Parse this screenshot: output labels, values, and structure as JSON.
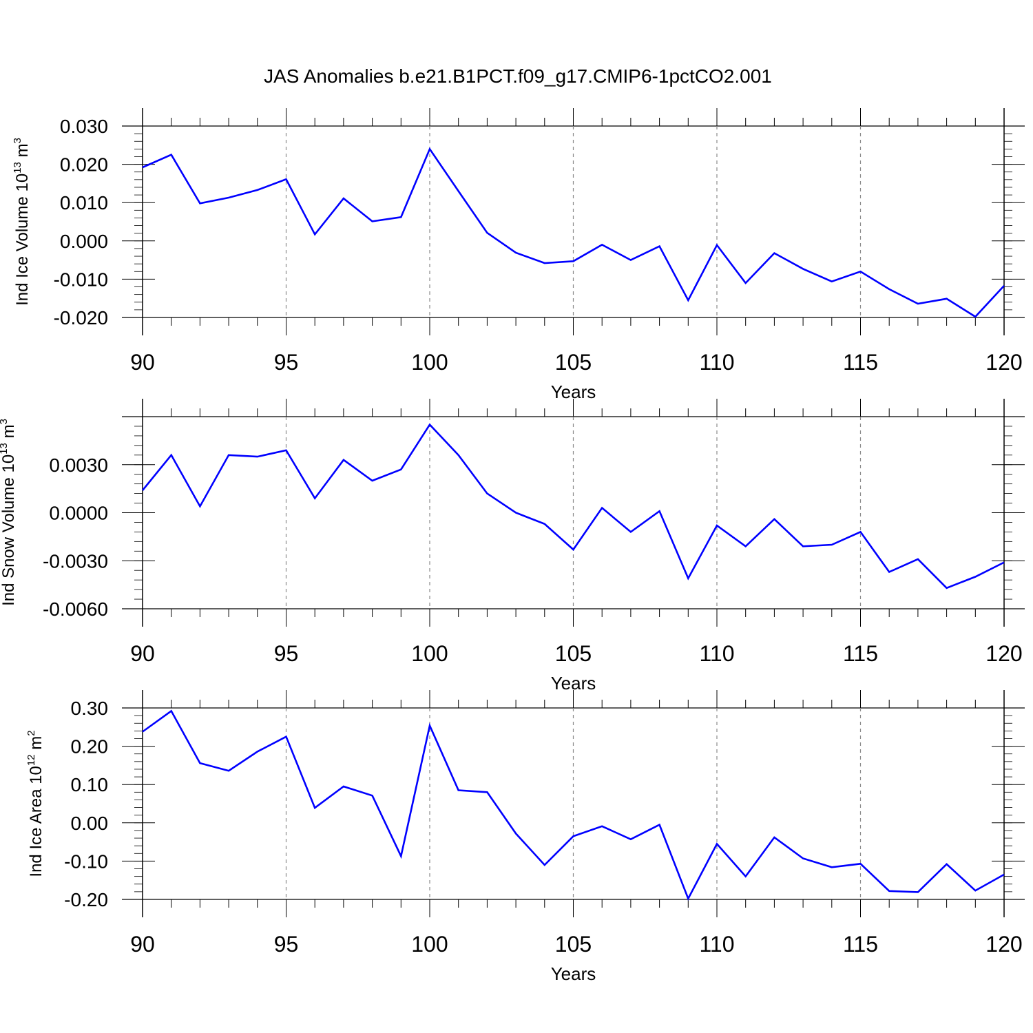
{
  "title": "JAS Anomalies b.e21.B1PCT.f09_g17.CMIP6-1pctCO2.001",
  "line_color": "#0000ff",
  "chart_data": [
    {
      "type": "line",
      "ylabel": {
        "text": "Ind Ice Volume 10",
        "exp": "13",
        "unit": " m",
        "unit_exp": "3"
      },
      "xlabel": "Years",
      "xlim": [
        90,
        120
      ],
      "ylim": [
        -0.02,
        0.03
      ],
      "xticks": [
        "90",
        "95",
        "100",
        "105",
        "110",
        "115",
        "120"
      ],
      "yticks": [
        "-0.020",
        "-0.010",
        "0.000",
        "0.010",
        "0.020",
        "0.030"
      ],
      "ytick_values": [
        -0.02,
        -0.01,
        0.0,
        0.01,
        0.02,
        0.03
      ],
      "series": [
        {
          "values": [
            0.0192,
            0.0225,
            0.0098,
            0.0113,
            0.0133,
            0.0161,
            0.0017,
            0.0111,
            0.0051,
            0.0062,
            0.024,
            0.013,
            0.0021,
            -0.0031,
            -0.0058,
            -0.0053,
            -0.001,
            -0.005,
            -0.0014,
            -0.0155,
            -0.0011,
            -0.011,
            -0.0032,
            -0.0073,
            -0.0106,
            -0.008,
            -0.0126,
            -0.0164,
            -0.0151,
            -0.0198,
            -0.0117
          ]
        }
      ]
    },
    {
      "type": "line",
      "ylabel": {
        "text": "Ind Snow Volume 10",
        "exp": "13",
        "unit": " m",
        "unit_exp": "3"
      },
      "xlabel": "Years",
      "xlim": [
        90,
        120
      ],
      "ylim": [
        -0.006,
        0.006
      ],
      "xticks": [
        "90",
        "95",
        "100",
        "105",
        "110",
        "115",
        "120"
      ],
      "yticks": [
        "-0.0060",
        "-0.0030",
        "0.0000",
        "0.0030"
      ],
      "ytick_values": [
        -0.006,
        -0.003,
        0.0,
        0.003
      ],
      "series": [
        {
          "values": [
            0.0014,
            0.0036,
            0.0004,
            0.0036,
            0.0035,
            0.0039,
            0.0009,
            0.0033,
            0.002,
            0.0027,
            0.0055,
            0.0036,
            0.0012,
            0.0,
            -0.0007,
            -0.0023,
            0.0003,
            -0.0012,
            0.0001,
            -0.0041,
            -0.0008,
            -0.0021,
            -0.0004,
            -0.0021,
            -0.002,
            -0.0012,
            -0.0037,
            -0.0029,
            -0.0047,
            -0.004,
            -0.0031
          ]
        }
      ]
    },
    {
      "type": "line",
      "ylabel": {
        "text": "Ind Ice Area 10",
        "exp": "12",
        "unit": " m",
        "unit_exp": "2"
      },
      "xlabel": "Years",
      "xlim": [
        90,
        120
      ],
      "ylim": [
        -0.2,
        0.3
      ],
      "xticks": [
        "90",
        "95",
        "100",
        "105",
        "110",
        "115",
        "120"
      ],
      "yticks": [
        "-0.20",
        "-0.10",
        "0.00",
        "0.10",
        "0.20",
        "0.30"
      ],
      "ytick_values": [
        -0.2,
        -0.1,
        0.0,
        0.1,
        0.2,
        0.3
      ],
      "series": [
        {
          "values": [
            0.238,
            0.292,
            0.156,
            0.136,
            0.186,
            0.225,
            0.039,
            0.095,
            0.071,
            -0.087,
            0.254,
            0.085,
            0.08,
            -0.028,
            -0.11,
            -0.035,
            -0.009,
            -0.043,
            -0.005,
            -0.198,
            -0.055,
            -0.14,
            -0.038,
            -0.093,
            -0.116,
            -0.107,
            -0.178,
            -0.181,
            -0.108,
            -0.177,
            -0.135
          ]
        }
      ]
    }
  ]
}
